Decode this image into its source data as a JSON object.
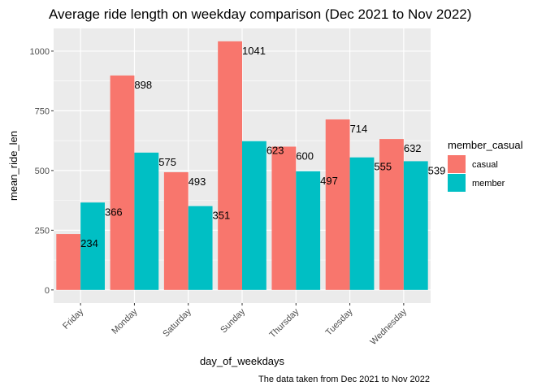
{
  "chart_data": {
    "type": "bar",
    "title": "Average ride length on weekday comparison (Dec 2021 to Nov 2022)",
    "xlabel": "day_of_weekdays",
    "ylabel": "mean_ride_len",
    "caption": "The data taken from Dec 2021 to Nov 2022",
    "categories": [
      "Friday",
      "Monday",
      "Saturday",
      "Sunday",
      "Thursday",
      "Tuesday",
      "Wednesday"
    ],
    "series": [
      {
        "name": "casual",
        "color": "#F8766D",
        "values": [
          234,
          898,
          493,
          1041,
          600,
          714,
          632
        ]
      },
      {
        "name": "member",
        "color": "#00BFC4",
        "values": [
          366,
          575,
          351,
          623,
          497,
          555,
          539
        ]
      }
    ],
    "ylim": [
      -55,
      1095
    ],
    "yticks": [
      0,
      250,
      500,
      750,
      1000
    ],
    "grid": true,
    "legend": {
      "title": "member_casual",
      "position": "right"
    },
    "panel_background": "#EBEBEB"
  }
}
